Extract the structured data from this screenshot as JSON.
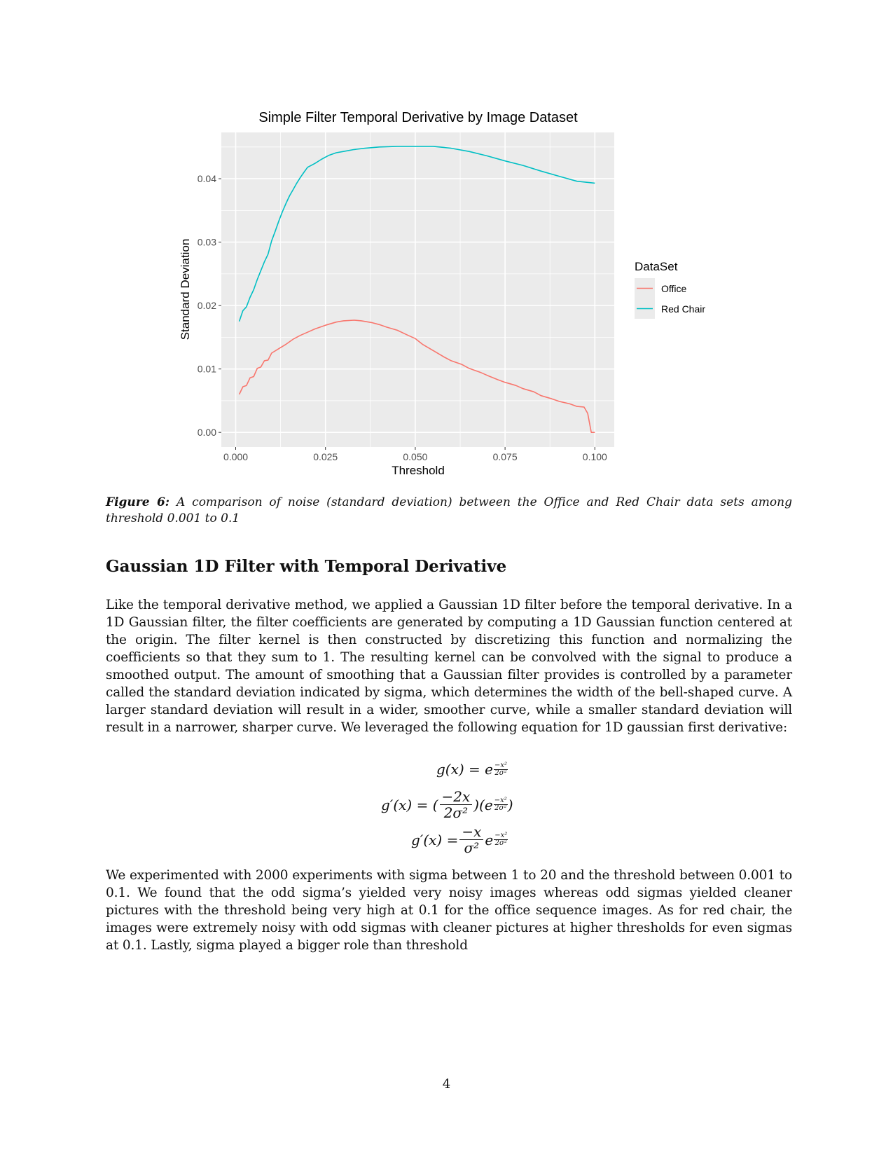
{
  "chart_data": {
    "type": "line",
    "title": "Simple Filter Temporal Derivative by Image Dataset",
    "xlabel": "Threshold",
    "ylabel": "Standard Deviation",
    "xlim": [
      -0.004,
      0.1054
    ],
    "ylim": [
      -0.0023,
      0.0473
    ],
    "x_ticks": [
      0.0,
      0.025,
      0.05,
      0.075,
      0.1
    ],
    "x_tick_labels": [
      "0.000",
      "0.025",
      "0.050",
      "0.075",
      "0.100"
    ],
    "y_ticks": [
      0.0,
      0.01,
      0.02,
      0.03,
      0.04
    ],
    "y_tick_labels": [
      "0.00",
      "0.01",
      "0.02",
      "0.03",
      "0.04"
    ],
    "legend_title": "DataSet",
    "legend_position": "right",
    "grid": true,
    "series": [
      {
        "name": "Office",
        "color": "#F8766D",
        "x": [
          0.001,
          0.002,
          0.003,
          0.004,
          0.005,
          0.006,
          0.007,
          0.008,
          0.009,
          0.01,
          0.012,
          0.014,
          0.016,
          0.018,
          0.02,
          0.022,
          0.025,
          0.028,
          0.03,
          0.033,
          0.035,
          0.038,
          0.04,
          0.042,
          0.045,
          0.048,
          0.05,
          0.052,
          0.055,
          0.058,
          0.06,
          0.063,
          0.065,
          0.068,
          0.07,
          0.073,
          0.075,
          0.078,
          0.08,
          0.083,
          0.085,
          0.088,
          0.09,
          0.093,
          0.095,
          0.097,
          0.098,
          0.099,
          0.1
        ],
        "values": [
          0.006,
          0.0072,
          0.0074,
          0.0086,
          0.0088,
          0.0101,
          0.0103,
          0.0113,
          0.0114,
          0.0125,
          0.0132,
          0.0139,
          0.0147,
          0.0153,
          0.0158,
          0.0163,
          0.0169,
          0.0174,
          0.0176,
          0.0177,
          0.0176,
          0.0173,
          0.017,
          0.0166,
          0.0161,
          0.0153,
          0.0148,
          0.0139,
          0.0129,
          0.0119,
          0.0113,
          0.0107,
          0.0101,
          0.0095,
          0.009,
          0.0083,
          0.0079,
          0.0074,
          0.0069,
          0.0064,
          0.0058,
          0.0053,
          0.0049,
          0.0045,
          0.0041,
          0.004,
          0.003,
          0.0,
          0.0
        ]
      },
      {
        "name": "Red Chair",
        "color": "#00BFC4",
        "x": [
          0.001,
          0.002,
          0.003,
          0.004,
          0.005,
          0.006,
          0.007,
          0.008,
          0.009,
          0.01,
          0.011,
          0.012,
          0.013,
          0.014,
          0.015,
          0.016,
          0.017,
          0.018,
          0.019,
          0.02,
          0.022,
          0.024,
          0.026,
          0.028,
          0.03,
          0.033,
          0.036,
          0.04,
          0.045,
          0.05,
          0.055,
          0.06,
          0.065,
          0.07,
          0.075,
          0.08,
          0.085,
          0.09,
          0.095,
          0.1
        ],
        "values": [
          0.0175,
          0.0192,
          0.0198,
          0.0213,
          0.0225,
          0.0241,
          0.0255,
          0.0269,
          0.0281,
          0.0302,
          0.0317,
          0.0333,
          0.0348,
          0.0361,
          0.0373,
          0.0383,
          0.0393,
          0.0402,
          0.041,
          0.0418,
          0.0424,
          0.0431,
          0.0437,
          0.0441,
          0.0443,
          0.0446,
          0.0448,
          0.045,
          0.0451,
          0.0451,
          0.0451,
          0.0448,
          0.0443,
          0.0436,
          0.0428,
          0.0421,
          0.0412,
          0.0404,
          0.0396,
          0.0393
        ]
      }
    ]
  },
  "caption": {
    "label": "Figure 6:",
    "text": " A comparison of noise (standard deviation) between the Office and Red Chair data sets among threshold 0.001 to 0.1"
  },
  "section_title": "Gaussian 1D Filter with Temporal Derivative",
  "para1": "Like the temporal derivative method, we applied a Gaussian 1D filter before the temporal derivative. In a 1D Gaussian filter, the filter coefficients are generated by computing a 1D Gaussian function centered at the origin. The filter kernel is then constructed by discretizing this function and normalizing the coefficients so that they sum to 1. The resulting kernel can be convolved with the signal to produce a smoothed output. The amount of smoothing that a Gaussian filter provides is controlled by a parameter called the standard deviation indicated by sigma, which determines the width of the bell-shaped curve. A larger standard deviation will result in a wider, smoother curve, while a smaller standard deviation will result in a narrower, sharper curve. We leveraged the following equation for 1D gaussian first derivative:",
  "equations": {
    "eq1_lhs": "g(x) = e",
    "eq2_lhs": "g′(x) = (",
    "eq2_num": "−2x",
    "eq2_den": "2σ²",
    "eq2_mid": ")(e",
    "eq2_end": ")",
    "eq3_lhs": "g′(x) =",
    "eq3_num": "−x",
    "eq3_den": "σ²",
    "eq3_e": "e",
    "exp_num": "−x²",
    "exp_den": "2σ²"
  },
  "para2": "We experimented with 2000 experiments with sigma between 1 to 20 and the threshold between 0.001 to 0.1. We found that the odd sigma’s yielded very noisy images whereas odd sigmas yielded cleaner pictures with the threshold being very high at 0.1 for the office sequence images. As for red chair, the images were extremely noisy with odd sigmas with cleaner pictures at higher thresholds for even sigmas at 0.1. Lastly, sigma played a bigger role than threshold",
  "page_number": "4"
}
